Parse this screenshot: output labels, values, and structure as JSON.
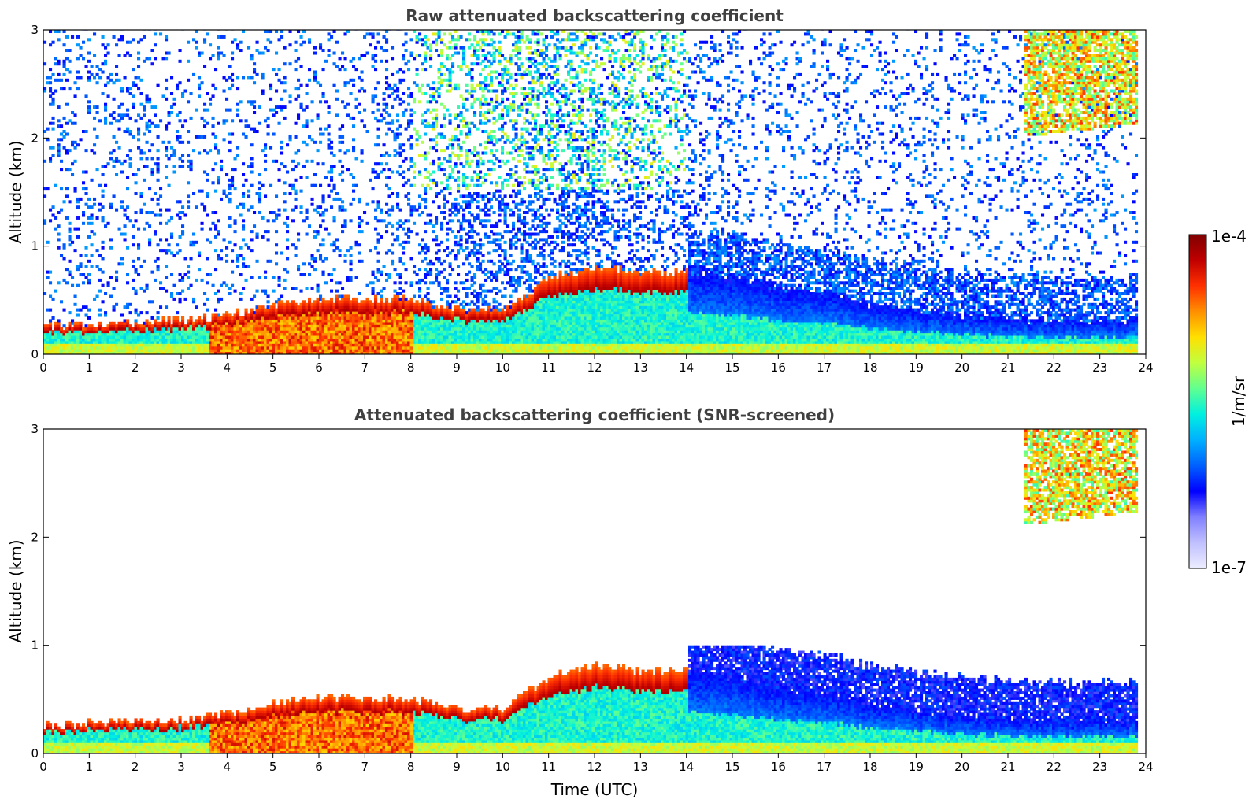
{
  "chart_data": [
    {
      "type": "heatmap",
      "title": "Raw attenuated backscattering coefficient",
      "xlabel": "",
      "ylabel": "Altitude (km)",
      "xlim": [
        0,
        24
      ],
      "ylim": [
        0,
        3
      ],
      "xticks": [
        "0",
        "1",
        "2",
        "3",
        "4",
        "5",
        "6",
        "7",
        "8",
        "9",
        "10",
        "11",
        "12",
        "13",
        "14",
        "15",
        "16",
        "17",
        "18",
        "19",
        "20",
        "21",
        "22",
        "23",
        "24"
      ],
      "yticks": [
        "0",
        "1",
        "2",
        "3"
      ],
      "grid": false,
      "screened": false,
      "features": {
        "boundary_layer_top_km": [
          [
            0,
            0.25
          ],
          [
            3,
            0.3
          ],
          [
            4,
            0.35
          ],
          [
            5,
            0.45
          ],
          [
            6,
            0.5
          ],
          [
            7,
            0.5
          ],
          [
            8,
            0.5
          ],
          [
            9,
            0.4
          ],
          [
            10,
            0.4
          ],
          [
            11,
            0.7
          ],
          [
            12,
            0.8
          ],
          [
            13,
            0.75
          ],
          [
            14,
            0.75
          ],
          [
            15,
            0.7
          ],
          [
            16,
            0.6
          ],
          [
            17,
            0.55
          ],
          [
            18,
            0.45
          ],
          [
            19,
            0.4
          ],
          [
            20,
            0.35
          ],
          [
            21,
            0.3
          ],
          [
            22,
            0.3
          ],
          [
            23,
            0.3
          ],
          [
            23.8,
            0.3
          ]
        ],
        "high_cloud": {
          "x_start": 21.3,
          "x_end": 23.8,
          "y_bottom": 2.0,
          "y_top": 3.0
        }
      }
    },
    {
      "type": "heatmap",
      "title": "Attenuated backscattering coefficient (SNR-screened)",
      "xlabel": "Time (UTC)",
      "ylabel": "Altitude (km)",
      "xlim": [
        0,
        24
      ],
      "ylim": [
        0,
        3
      ],
      "xticks": [
        "0",
        "1",
        "2",
        "3",
        "4",
        "5",
        "6",
        "7",
        "8",
        "9",
        "10",
        "11",
        "12",
        "13",
        "14",
        "15",
        "16",
        "17",
        "18",
        "19",
        "20",
        "21",
        "22",
        "23",
        "24"
      ],
      "yticks": [
        "0",
        "1",
        "2",
        "3"
      ],
      "grid": false,
      "screened": true,
      "features": {
        "boundary_layer_top_km": [
          [
            0,
            0.25
          ],
          [
            3,
            0.3
          ],
          [
            4,
            0.35
          ],
          [
            5,
            0.45
          ],
          [
            6,
            0.5
          ],
          [
            7,
            0.5
          ],
          [
            8,
            0.5
          ],
          [
            9,
            0.4
          ],
          [
            10,
            0.4
          ],
          [
            11,
            0.7
          ],
          [
            12,
            0.8
          ],
          [
            13,
            0.75
          ],
          [
            14,
            0.75
          ],
          [
            15,
            0.7
          ],
          [
            16,
            0.6
          ],
          [
            17,
            0.55
          ],
          [
            18,
            0.45
          ],
          [
            19,
            0.4
          ],
          [
            20,
            0.35
          ],
          [
            21,
            0.3
          ],
          [
            22,
            0.3
          ],
          [
            23,
            0.3
          ],
          [
            23.8,
            0.3
          ]
        ],
        "high_cloud": {
          "x_start": 21.3,
          "x_end": 23.8,
          "y_bottom": 2.1,
          "y_top": 3.0
        }
      }
    }
  ],
  "colorbar": {
    "label": "1/m/sr",
    "max_label": "1e-4",
    "min_label": "1e-7",
    "scale": "log",
    "colormap": "jet",
    "colors": [
      "#ececff",
      "#c0c0ff",
      "#8080ff",
      "#0000ff",
      "#0060ff",
      "#00b0ff",
      "#00f0e0",
      "#60ff90",
      "#c0ff40",
      "#ffe000",
      "#ff9000",
      "#ff3000",
      "#c00000",
      "#800000"
    ]
  }
}
